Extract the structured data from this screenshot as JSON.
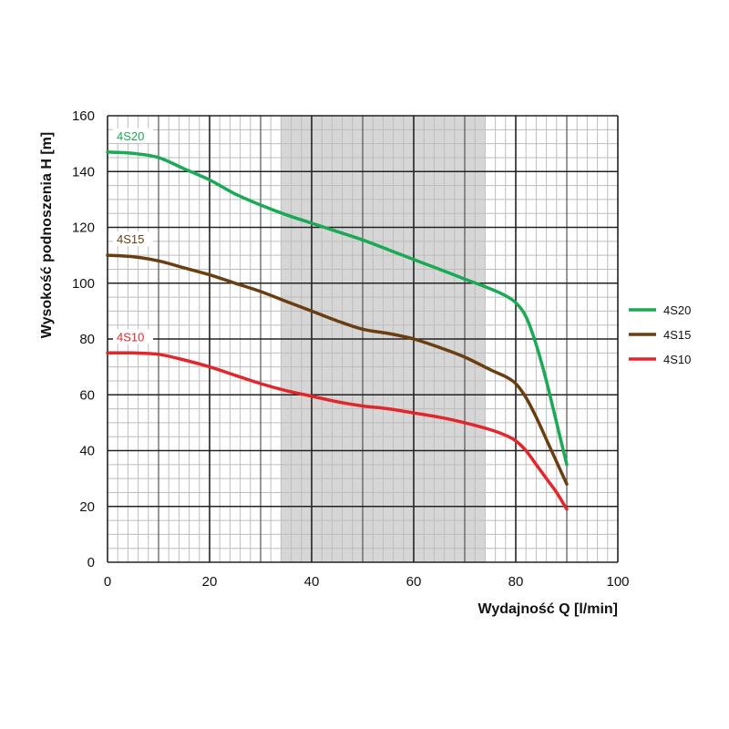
{
  "chart_data": {
    "type": "line",
    "title": "",
    "xlabel": "Wydajność Q [l/min]",
    "ylabel": "Wysokość podnoszenia H [m]",
    "xlim": [
      0,
      100
    ],
    "ylim": [
      0,
      160
    ],
    "x_ticks": [
      "0",
      "20",
      "40",
      "60",
      "80",
      "100"
    ],
    "y_ticks": [
      "0",
      "20",
      "40",
      "60",
      "80",
      "100",
      "120",
      "140",
      "160"
    ],
    "x_tick_values": [
      0,
      20,
      40,
      60,
      80,
      100
    ],
    "y_tick_values": [
      0,
      20,
      40,
      60,
      80,
      100,
      120,
      140,
      160
    ],
    "grid": true,
    "shaded_range": [
      34,
      74
    ],
    "legend_position": "right",
    "series": [
      {
        "name": "4S20",
        "color": "#1aaa55",
        "points": [
          [
            0,
            147
          ],
          [
            5,
            146.5
          ],
          [
            10,
            145
          ],
          [
            15,
            141
          ],
          [
            20,
            137
          ],
          [
            25,
            132
          ],
          [
            30,
            128
          ],
          [
            35,
            124.5
          ],
          [
            40,
            121.5
          ],
          [
            45,
            118.5
          ],
          [
            50,
            115.5
          ],
          [
            55,
            112
          ],
          [
            60,
            108.5
          ],
          [
            65,
            105
          ],
          [
            70,
            101.5
          ],
          [
            75,
            98
          ],
          [
            78,
            95.5
          ],
          [
            80,
            93
          ],
          [
            82,
            88
          ],
          [
            84,
            78
          ],
          [
            86,
            65
          ],
          [
            88,
            50
          ],
          [
            90,
            35
          ]
        ]
      },
      {
        "name": "4S15",
        "color": "#6b3e12",
        "points": [
          [
            0,
            110
          ],
          [
            5,
            109.5
          ],
          [
            10,
            108
          ],
          [
            15,
            105.5
          ],
          [
            20,
            103
          ],
          [
            25,
            100
          ],
          [
            30,
            97
          ],
          [
            35,
            93.5
          ],
          [
            40,
            90
          ],
          [
            45,
            86.5
          ],
          [
            50,
            83.5
          ],
          [
            55,
            82
          ],
          [
            60,
            80
          ],
          [
            65,
            77
          ],
          [
            70,
            73.5
          ],
          [
            75,
            69
          ],
          [
            78,
            66.5
          ],
          [
            80,
            64
          ],
          [
            82,
            59
          ],
          [
            84,
            52
          ],
          [
            86,
            44
          ],
          [
            88,
            36
          ],
          [
            90,
            28
          ]
        ]
      },
      {
        "name": "4S10",
        "color": "#e3262b",
        "points": [
          [
            0,
            75
          ],
          [
            5,
            75
          ],
          [
            10,
            74.5
          ],
          [
            15,
            72.5
          ],
          [
            20,
            70
          ],
          [
            25,
            67
          ],
          [
            30,
            64
          ],
          [
            35,
            61.5
          ],
          [
            40,
            59.5
          ],
          [
            45,
            57.5
          ],
          [
            50,
            56
          ],
          [
            55,
            55
          ],
          [
            60,
            53.5
          ],
          [
            65,
            52
          ],
          [
            70,
            50
          ],
          [
            75,
            47.5
          ],
          [
            78,
            45.5
          ],
          [
            80,
            43.5
          ],
          [
            82,
            40
          ],
          [
            84,
            35
          ],
          [
            86,
            30
          ],
          [
            88,
            25
          ],
          [
            90,
            19
          ]
        ]
      }
    ]
  }
}
